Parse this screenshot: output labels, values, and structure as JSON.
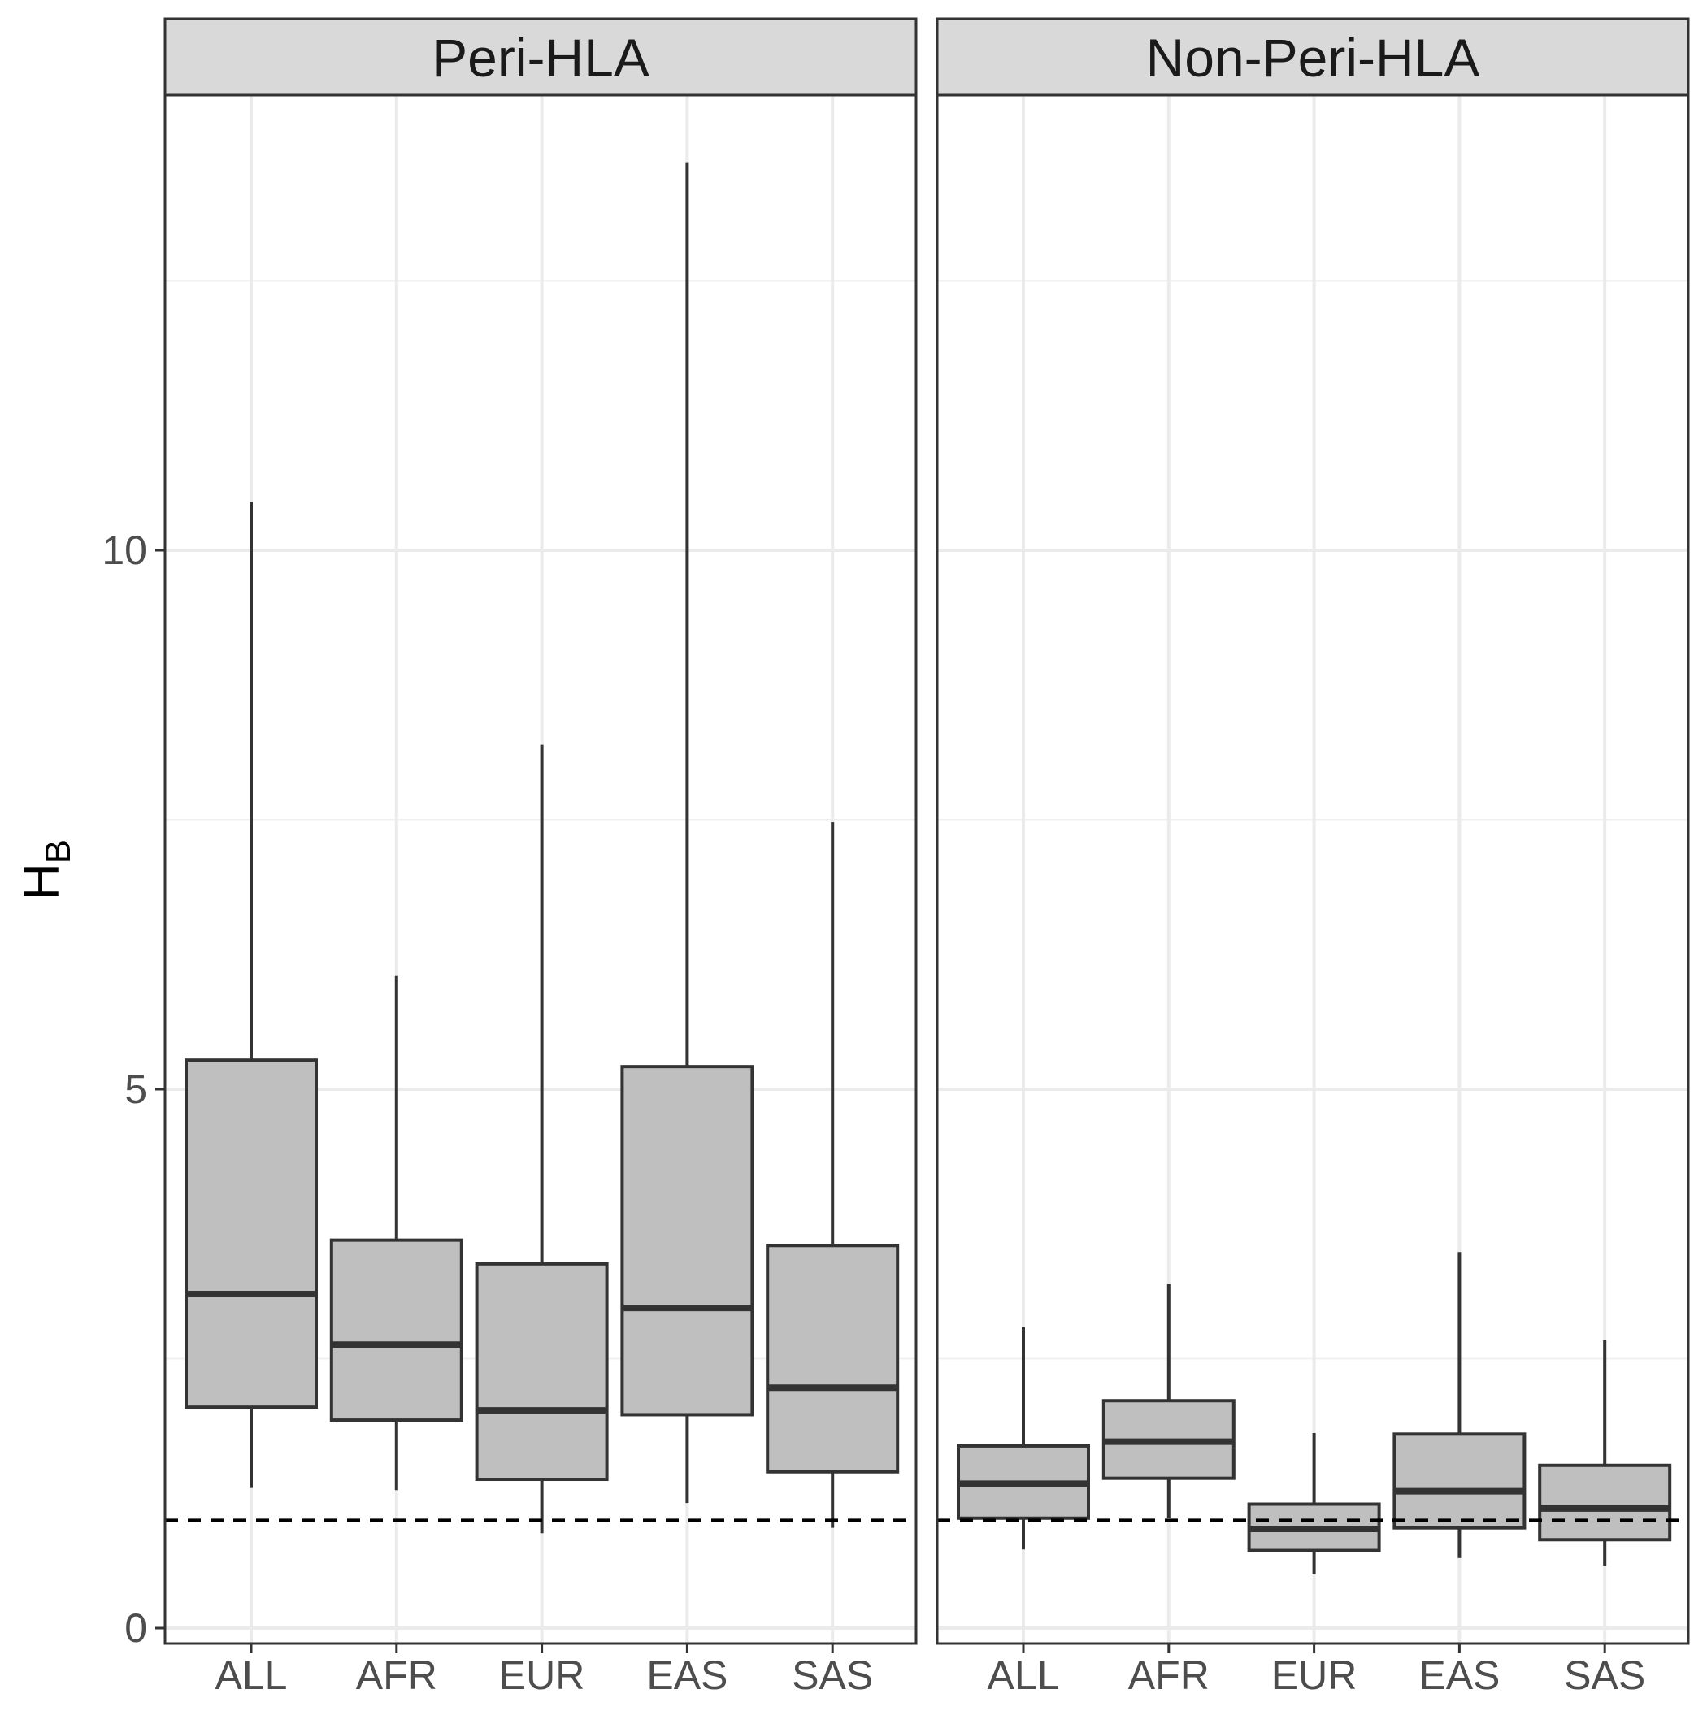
{
  "chart_data": {
    "type": "boxplot",
    "ylabel": "H",
    "ylabel_subscript": "B",
    "ylim": [
      0,
      15
    ],
    "yticks": [
      0,
      5,
      10
    ],
    "reference_line": {
      "y": 1.0,
      "style": "dashed"
    },
    "grid": true,
    "categories": [
      "ALL",
      "AFR",
      "EUR",
      "EAS",
      "SAS"
    ],
    "fill_color": "#bfbfbf",
    "line_color": "#333333",
    "panels": [
      {
        "title": "Peri-HLA",
        "boxes": [
          {
            "category": "ALL",
            "whisker_low": 1.3,
            "q1": 2.05,
            "median": 3.1,
            "q3": 5.27,
            "whisker_high": 10.45
          },
          {
            "category": "AFR",
            "whisker_low": 1.28,
            "q1": 1.93,
            "median": 2.63,
            "q3": 3.6,
            "whisker_high": 6.05
          },
          {
            "category": "EUR",
            "whisker_low": 0.88,
            "q1": 1.38,
            "median": 2.02,
            "q3": 3.38,
            "whisker_high": 8.2
          },
          {
            "category": "EAS",
            "whisker_low": 1.16,
            "q1": 1.98,
            "median": 2.97,
            "q3": 5.21,
            "whisker_high": 13.6
          },
          {
            "category": "SAS",
            "whisker_low": 0.93,
            "q1": 1.45,
            "median": 2.23,
            "q3": 3.55,
            "whisker_high": 7.48
          }
        ]
      },
      {
        "title": "Non-Peri-HLA",
        "boxes": [
          {
            "category": "ALL",
            "whisker_low": 0.73,
            "q1": 1.02,
            "median": 1.34,
            "q3": 1.69,
            "whisker_high": 2.79
          },
          {
            "category": "AFR",
            "whisker_low": 1.02,
            "q1": 1.39,
            "median": 1.73,
            "q3": 2.11,
            "whisker_high": 3.19
          },
          {
            "category": "EUR",
            "whisker_low": 0.5,
            "q1": 0.72,
            "median": 0.92,
            "q3": 1.15,
            "whisker_high": 1.81
          },
          {
            "category": "EAS",
            "whisker_low": 0.65,
            "q1": 0.93,
            "median": 1.27,
            "q3": 1.8,
            "whisker_high": 3.49
          },
          {
            "category": "SAS",
            "whisker_low": 0.58,
            "q1": 0.82,
            "median": 1.11,
            "q3": 1.51,
            "whisker_high": 2.67
          }
        ]
      }
    ]
  }
}
